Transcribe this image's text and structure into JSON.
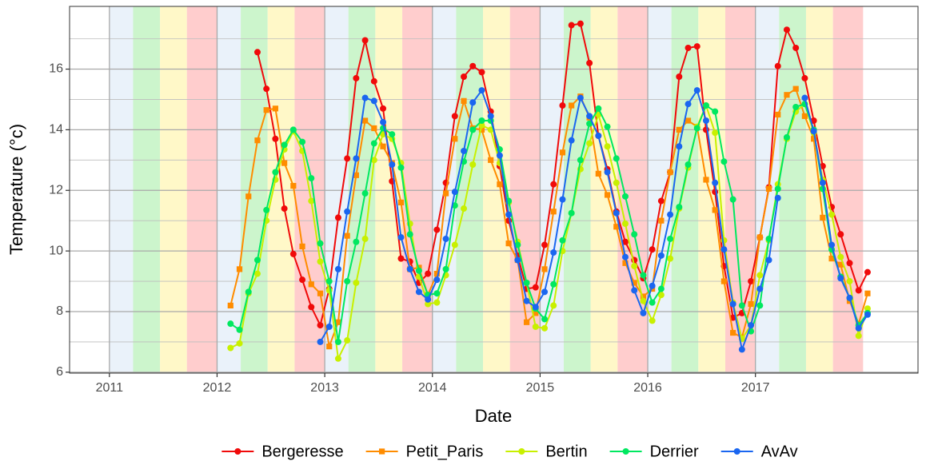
{
  "chart_data": {
    "type": "line",
    "x_label": "Date",
    "y_label": "Temperature (°c)",
    "x": [
      "2012-02",
      "2012-03",
      "2012-04",
      "2012-05",
      "2012-06",
      "2012-07",
      "2012-08",
      "2012-09",
      "2012-10",
      "2012-11",
      "2012-12",
      "2013-01",
      "2013-02",
      "2013-03",
      "2013-04",
      "2013-05",
      "2013-06",
      "2013-07",
      "2013-08",
      "2013-09",
      "2013-10",
      "2013-11",
      "2013-12",
      "2014-01",
      "2014-02",
      "2014-03",
      "2014-04",
      "2014-05",
      "2014-06",
      "2014-07",
      "2014-08",
      "2014-09",
      "2014-10",
      "2014-11",
      "2014-12",
      "2015-01",
      "2015-02",
      "2015-03",
      "2015-04",
      "2015-05",
      "2015-06",
      "2015-07",
      "2015-08",
      "2015-09",
      "2015-10",
      "2015-11",
      "2015-12",
      "2016-01",
      "2016-02",
      "2016-03",
      "2016-04",
      "2016-05",
      "2016-06",
      "2016-07",
      "2016-08",
      "2016-09",
      "2016-10",
      "2016-11",
      "2016-12",
      "2017-01",
      "2017-02",
      "2017-03",
      "2017-04",
      "2017-05",
      "2017-06",
      "2017-07",
      "2017-08",
      "2017-09",
      "2017-10",
      "2017-11",
      "2017-12",
      "2018-01"
    ],
    "series": [
      {
        "name": "Bergeresse",
        "color": "#f00a0a",
        "marker": "circle",
        "values": [
          null,
          null,
          null,
          16.56,
          15.35,
          13.7,
          11.4,
          9.9,
          9.05,
          8.15,
          7.55,
          8.75,
          11.1,
          13.05,
          15.7,
          16.95,
          15.6,
          14.7,
          12.3,
          9.75,
          9.65,
          8.95,
          9.25,
          10.7,
          12.25,
          14.45,
          15.75,
          16.1,
          15.9,
          14.6,
          12.8,
          11.0,
          9.85,
          8.75,
          8.8,
          10.2,
          12.2,
          14.8,
          17.45,
          17.5,
          16.2,
          13.8,
          12.7,
          11.3,
          10.3,
          9.7,
          9.1,
          10.05,
          11.65,
          12.6,
          15.75,
          16.7,
          16.75,
          14.0,
          11.95,
          9.5,
          7.8,
          7.95,
          9.0,
          10.45,
          12.1,
          16.1,
          17.3,
          16.7,
          15.7,
          14.3,
          12.8,
          11.45,
          10.55,
          9.6,
          8.7,
          9.3
        ]
      },
      {
        "name": "Petit_Paris",
        "color": "#ff8c00",
        "marker": "square",
        "values": [
          8.2,
          9.4,
          11.8,
          13.65,
          14.65,
          14.7,
          12.9,
          12.15,
          10.15,
          8.9,
          8.6,
          6.85,
          7.65,
          10.5,
          12.5,
          14.3,
          14.05,
          13.45,
          12.9,
          11.6,
          9.4,
          9.45,
          8.55,
          9.25,
          11.9,
          13.7,
          14.95,
          14.05,
          14.0,
          13.0,
          12.2,
          10.25,
          9.7,
          7.65,
          7.95,
          9.4,
          11.3,
          13.25,
          14.8,
          15.1,
          14.4,
          12.55,
          11.85,
          10.8,
          9.6,
          8.95,
          8.5,
          8.75,
          11.0,
          12.6,
          14.0,
          14.3,
          14.1,
          12.35,
          11.35,
          9.0,
          7.3,
          7.15,
          8.25,
          10.45,
          12.05,
          14.5,
          15.15,
          15.35,
          14.45,
          13.7,
          11.1,
          9.75,
          9.55,
          8.35,
          7.6,
          8.6
        ]
      },
      {
        "name": "Bertin",
        "color": "#c8f000",
        "marker": "circle",
        "values": [
          6.8,
          6.95,
          8.6,
          9.25,
          11.0,
          12.35,
          13.35,
          13.95,
          13.3,
          11.65,
          9.65,
          8.7,
          6.45,
          7.05,
          8.95,
          10.4,
          13.0,
          13.85,
          13.7,
          12.9,
          10.9,
          9.15,
          8.25,
          8.3,
          9.2,
          10.2,
          11.4,
          12.85,
          14.15,
          14.0,
          12.9,
          11.6,
          10.3,
          8.95,
          7.5,
          7.45,
          8.2,
          10.0,
          11.25,
          12.7,
          13.55,
          14.5,
          13.45,
          12.25,
          10.9,
          9.5,
          8.35,
          7.7,
          8.55,
          9.75,
          11.4,
          12.75,
          14.1,
          14.8,
          13.9,
          10.35,
          8.3,
          7.1,
          7.55,
          9.2,
          10.35,
          12.2,
          13.7,
          14.6,
          14.85,
          13.9,
          12.35,
          11.2,
          9.8,
          9.0,
          7.2,
          8.1
        ]
      },
      {
        "name": "Derrier",
        "color": "#00e860",
        "marker": "circle",
        "values": [
          7.6,
          7.4,
          8.65,
          9.7,
          11.35,
          12.6,
          13.5,
          14.0,
          13.6,
          12.4,
          10.25,
          9.0,
          7.0,
          9.0,
          10.3,
          11.9,
          13.55,
          14.05,
          13.85,
          12.75,
          10.55,
          9.35,
          8.55,
          8.6,
          9.4,
          11.5,
          12.95,
          14.0,
          14.3,
          14.3,
          13.35,
          11.65,
          10.2,
          8.95,
          8.1,
          7.75,
          8.9,
          10.35,
          11.25,
          13.0,
          14.2,
          14.7,
          14.1,
          13.05,
          11.8,
          10.55,
          9.2,
          8.3,
          8.75,
          10.4,
          11.45,
          12.85,
          14.05,
          14.8,
          14.6,
          12.95,
          11.7,
          8.2,
          7.35,
          8.2,
          10.4,
          12.05,
          13.75,
          14.75,
          14.85,
          14.0,
          12.05,
          10.05,
          9.15,
          8.45,
          7.55,
          7.95
        ]
      },
      {
        "name": "AvAv",
        "color": "#1a66f0",
        "marker": "circle",
        "values": [
          null,
          null,
          null,
          null,
          null,
          null,
          null,
          null,
          null,
          null,
          7.0,
          7.5,
          9.4,
          11.3,
          13.05,
          15.05,
          14.95,
          14.25,
          12.85,
          10.45,
          9.4,
          8.65,
          8.4,
          9.05,
          10.4,
          11.95,
          13.3,
          14.9,
          15.3,
          14.45,
          13.15,
          11.2,
          9.7,
          8.35,
          8.15,
          8.65,
          9.95,
          11.7,
          13.65,
          15.05,
          14.45,
          13.8,
          12.6,
          11.25,
          9.8,
          8.7,
          7.95,
          8.85,
          9.85,
          11.2,
          13.45,
          14.85,
          15.3,
          14.3,
          12.25,
          10.05,
          8.25,
          6.75,
          7.55,
          8.75,
          9.7,
          11.75,
          null,
          null,
          15.05,
          13.95,
          12.25,
          10.2,
          9.1,
          8.45,
          7.45,
          7.9
        ]
      }
    ],
    "xlim": [
      2010.63,
      2018.51
    ],
    "xticks": [
      2011,
      2012,
      2013,
      2014,
      2015,
      2016,
      2017
    ],
    "ylim": [
      5.97,
      18.07
    ],
    "yticks": [
      6,
      8,
      10,
      12,
      14,
      16
    ],
    "yminorticks": [
      7,
      9,
      11,
      13,
      15,
      17
    ],
    "grid": true,
    "legend": "bottom",
    "band_range": [
      2011,
      2018
    ],
    "band_colors": [
      "#eaf2fa",
      "#ccf5cc",
      "#fff8c8",
      "#ffcdcd"
    ]
  }
}
